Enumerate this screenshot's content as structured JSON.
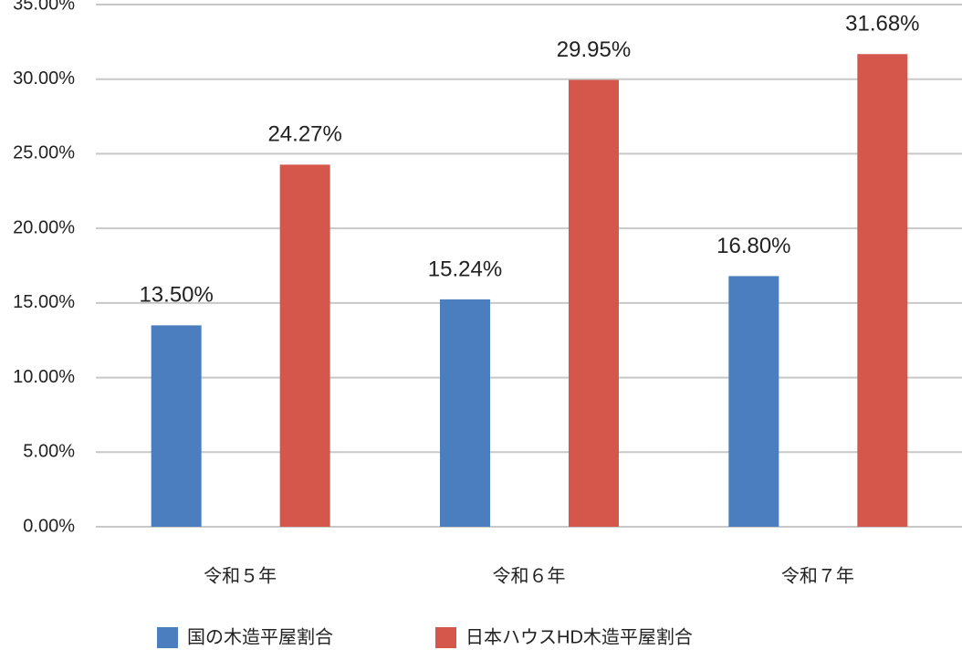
{
  "chart_data": {
    "type": "bar",
    "categories": [
      "令和５年",
      "令和６年",
      "令和７年"
    ],
    "series": [
      {
        "name": "国の木造平屋割合",
        "color": "#4a7ebf",
        "values": [
          13.5,
          15.24,
          16.8
        ],
        "value_labels": [
          "13.50%",
          "15.24%",
          "16.80%"
        ]
      },
      {
        "name": "日本ハウスHD木造平屋割合",
        "color": "#d5564a",
        "values": [
          24.27,
          29.95,
          31.68
        ],
        "value_labels": [
          "24.27%",
          "29.95%",
          "31.68%"
        ]
      }
    ],
    "ylim": [
      0,
      35
    ],
    "yticks": [
      {
        "value": 0,
        "label": "0.00%"
      },
      {
        "value": 5,
        "label": "5.00%"
      },
      {
        "value": 10,
        "label": "10.00%"
      },
      {
        "value": 15,
        "label": "15.00%"
      },
      {
        "value": 20,
        "label": "20.00%"
      },
      {
        "value": 25,
        "label": "25.00%"
      },
      {
        "value": 30,
        "label": "30.00%"
      },
      {
        "value": 35,
        "label": "35.00%"
      }
    ],
    "grid": true,
    "legend": "bottom"
  }
}
